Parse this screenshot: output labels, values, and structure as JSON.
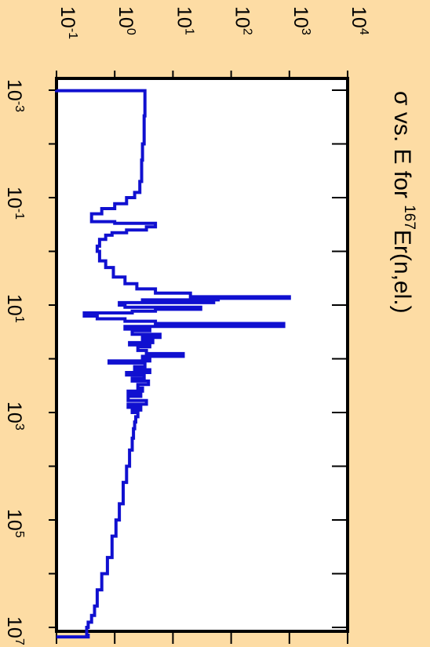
{
  "chart_data": {
    "type": "line",
    "title_parts": [
      "σ vs. E for ",
      "167",
      "Er(n,el.)"
    ],
    "x_scale": "log",
    "y_scale": "log",
    "xlim": [
      0.001,
      10000000
    ],
    "ylim": [
      0.1,
      10000
    ],
    "x_ticks": [
      {
        "base": "10",
        "exp": "-3",
        "value": 0.001
      },
      {
        "base": "10",
        "exp": "-1",
        "value": 0.1
      },
      {
        "base": "10",
        "exp": "1",
        "value": 10
      },
      {
        "base": "10",
        "exp": "3",
        "value": 1000
      },
      {
        "base": "10",
        "exp": "5",
        "value": 100000
      },
      {
        "base": "10",
        "exp": "7",
        "value": 10000000
      }
    ],
    "y_ticks": [
      {
        "base": "10",
        "exp": "-1",
        "value": 0.1
      },
      {
        "base": "10",
        "exp": "0",
        "value": 1
      },
      {
        "base": "10",
        "exp": "1",
        "value": 10
      },
      {
        "base": "10",
        "exp": "2",
        "value": 100
      },
      {
        "base": "10",
        "exp": "3",
        "value": 1000
      },
      {
        "base": "10",
        "exp": "4",
        "value": 10000
      }
    ],
    "line_color": "#1010d0",
    "series": [
      {
        "x": [
          0.001,
          0.00102,
          0.0015,
          0.003,
          0.01,
          0.02,
          0.05,
          0.08,
          0.1,
          0.13,
          0.16,
          0.2,
          0.25,
          0.28,
          0.3,
          0.33,
          0.35,
          0.4,
          0.45,
          0.5,
          0.6,
          0.8,
          1,
          1.5,
          2,
          3,
          4,
          5,
          6,
          7,
          7.5,
          8,
          8.5,
          9,
          10,
          11,
          12,
          13,
          14,
          16,
          18,
          20,
          22,
          25,
          28,
          30,
          35,
          40,
          45,
          50,
          55,
          60,
          70,
          80,
          90,
          100,
          110,
          120,
          140,
          160,
          180,
          200,
          230,
          260,
          300,
          350,
          400,
          450,
          500,
          600,
          700,
          800,
          900,
          1000,
          1200,
          1500,
          2000,
          3000,
          5000,
          10000,
          20000,
          50000,
          100000,
          200000,
          500000,
          1000000,
          2000000,
          4000000,
          6000000,
          8000000,
          10000000,
          14000000,
          15000000
        ],
        "y": [
          0.1,
          3.3,
          3.3,
          3.2,
          3.0,
          2.9,
          2.7,
          2.2,
          1.6,
          1.0,
          0.6,
          0.4,
          0.4,
          1.0,
          5.0,
          5.0,
          3.5,
          1.6,
          0.9,
          0.7,
          0.55,
          0.5,
          0.55,
          0.7,
          0.95,
          1.5,
          2.4,
          5,
          20,
          1000,
          60,
          3,
          50,
          1.2,
          1.5,
          30,
          5,
          2,
          0.3,
          0.5,
          1.5,
          5,
          800,
          1.5,
          4.0,
          2.0,
          6,
          3.0,
          4.5,
          1.8,
          4.0,
          2.5,
          3.5,
          15,
          3.0,
          4.0,
          0.8,
          3.3,
          2.2,
          4.0,
          1.6,
          3.2,
          2.0,
          3.8,
          2.5,
          3.0,
          1.7,
          2.8,
          1.7,
          3.5,
          1.7,
          2.8,
          2.0,
          2.5,
          2.3,
          2.2,
          2.1,
          2.0,
          1.8,
          1.6,
          1.4,
          1.2,
          1.05,
          0.9,
          0.75,
          0.6,
          0.5,
          0.45,
          0.4,
          0.35,
          0.33,
          0.35,
          0.1
        ]
      }
    ]
  }
}
